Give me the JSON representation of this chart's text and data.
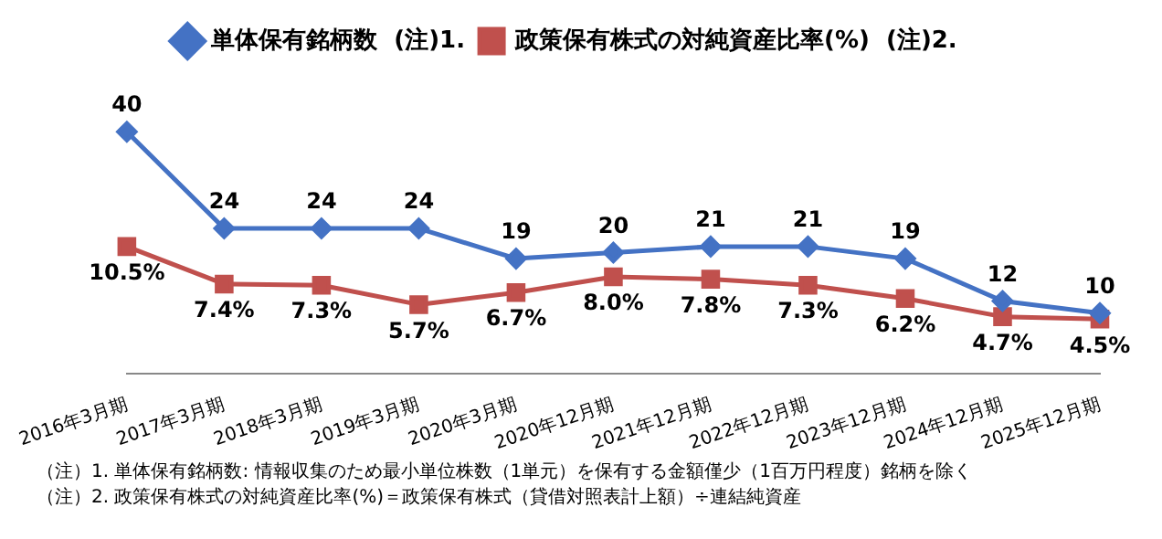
{
  "chart_data": {
    "type": "line",
    "categories": [
      "2016年3月期",
      "2017年3月期",
      "2018年3月期",
      "2019年3月期",
      "2020年3月期",
      "2020年12月期",
      "2021年12月期",
      "2022年12月期",
      "2023年12月期",
      "2024年12月期",
      "2025年12月期"
    ],
    "series": [
      {
        "name": "単体保有銘柄数  (注)1.",
        "color": "#4472c4",
        "marker": "diamond",
        "values": [
          40,
          24,
          24,
          24,
          19,
          20,
          21,
          21,
          19,
          12,
          10
        ],
        "value_labels": [
          "40",
          "24",
          "24",
          "24",
          "19",
          "20",
          "21",
          "21",
          "19",
          "12",
          "10"
        ]
      },
      {
        "name": "政策保有株式の対純資産比率(%)  (注)2.",
        "color": "#c0504d",
        "marker": "square",
        "axis": "y2",
        "values": [
          10.5,
          7.4,
          7.3,
          5.7,
          6.7,
          8.0,
          7.8,
          7.3,
          6.2,
          4.7,
          4.5
        ],
        "value_labels": [
          "10.5%",
          "7.4%",
          "7.3%",
          "5.7%",
          "6.7%",
          "8.0%",
          "7.8%",
          "7.3%",
          "6.2%",
          "4.7%",
          "4.5%"
        ]
      }
    ],
    "legend": "top",
    "grid": false,
    "tick_labels": "x",
    "line_style": "solid",
    "annotations": [
      "（注）1.  単体保有銘柄数: 情報収集のため最小単位株数（1単元）を保有する金額僅少（1百万円程度）銘柄を除く",
      "（注）2.  政策保有株式の対純資産比率(%)＝政策保有株式（貸借対照表計上額）÷連結純資産"
    ]
  }
}
